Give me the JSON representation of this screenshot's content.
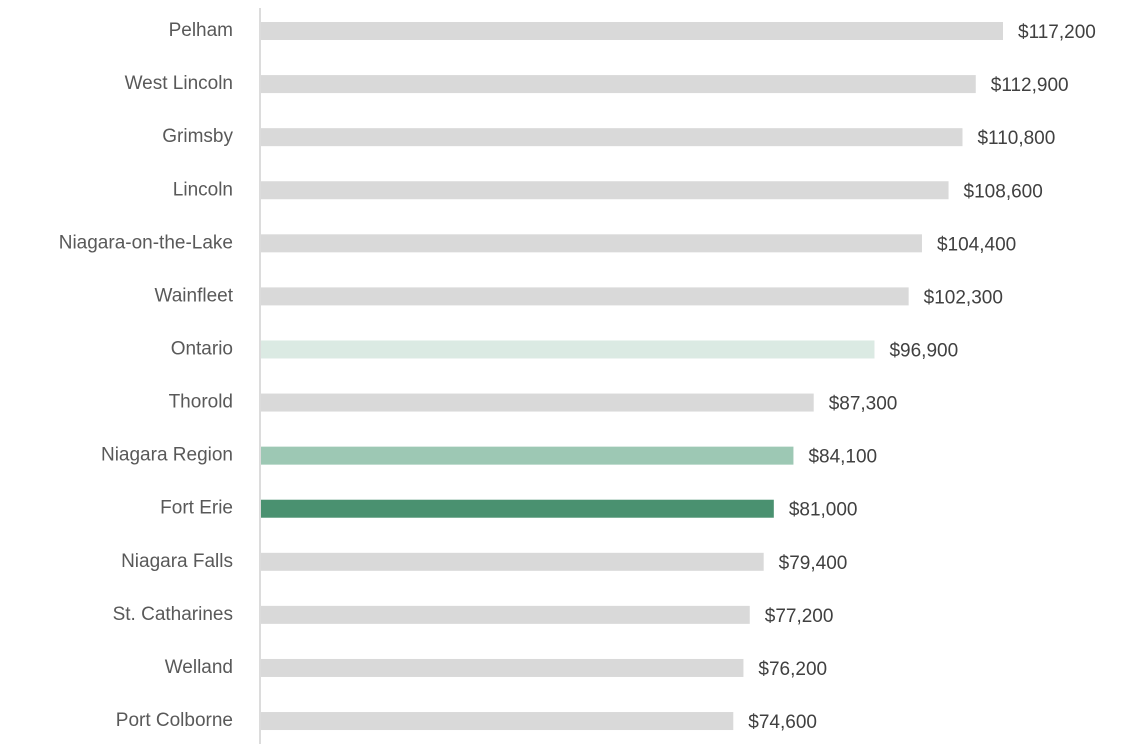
{
  "chart_data": {
    "type": "bar",
    "orientation": "horizontal",
    "categories": [
      "Pelham",
      "West Lincoln",
      "Grimsby",
      "Lincoln",
      "Niagara-on-the-Lake",
      "Wainfleet",
      "Ontario",
      "Thorold",
      "Niagara Region",
      "Fort Erie",
      "Niagara Falls",
      "St. Catharines",
      "Welland",
      "Port Colborne"
    ],
    "values": [
      117200,
      112900,
      110800,
      108600,
      104400,
      102300,
      96900,
      87300,
      84100,
      81000,
      79400,
      77200,
      76200,
      74600
    ],
    "value_labels": [
      "$117,200",
      "$112,900",
      "$110,800",
      "$108,600",
      "$104,400",
      "$102,300",
      "$96,900",
      "$87,300",
      "$84,100",
      "$81,000",
      "$79,400",
      "$77,200",
      "$76,200",
      "$74,600"
    ],
    "colors": [
      "#d9d9d9",
      "#d9d9d9",
      "#d9d9d9",
      "#d9d9d9",
      "#d9d9d9",
      "#d9d9d9",
      "#dbeae3",
      "#d9d9d9",
      "#9dc8b4",
      "#4a9170",
      "#d9d9d9",
      "#d9d9d9",
      "#d9d9d9",
      "#d9d9d9"
    ]
  }
}
